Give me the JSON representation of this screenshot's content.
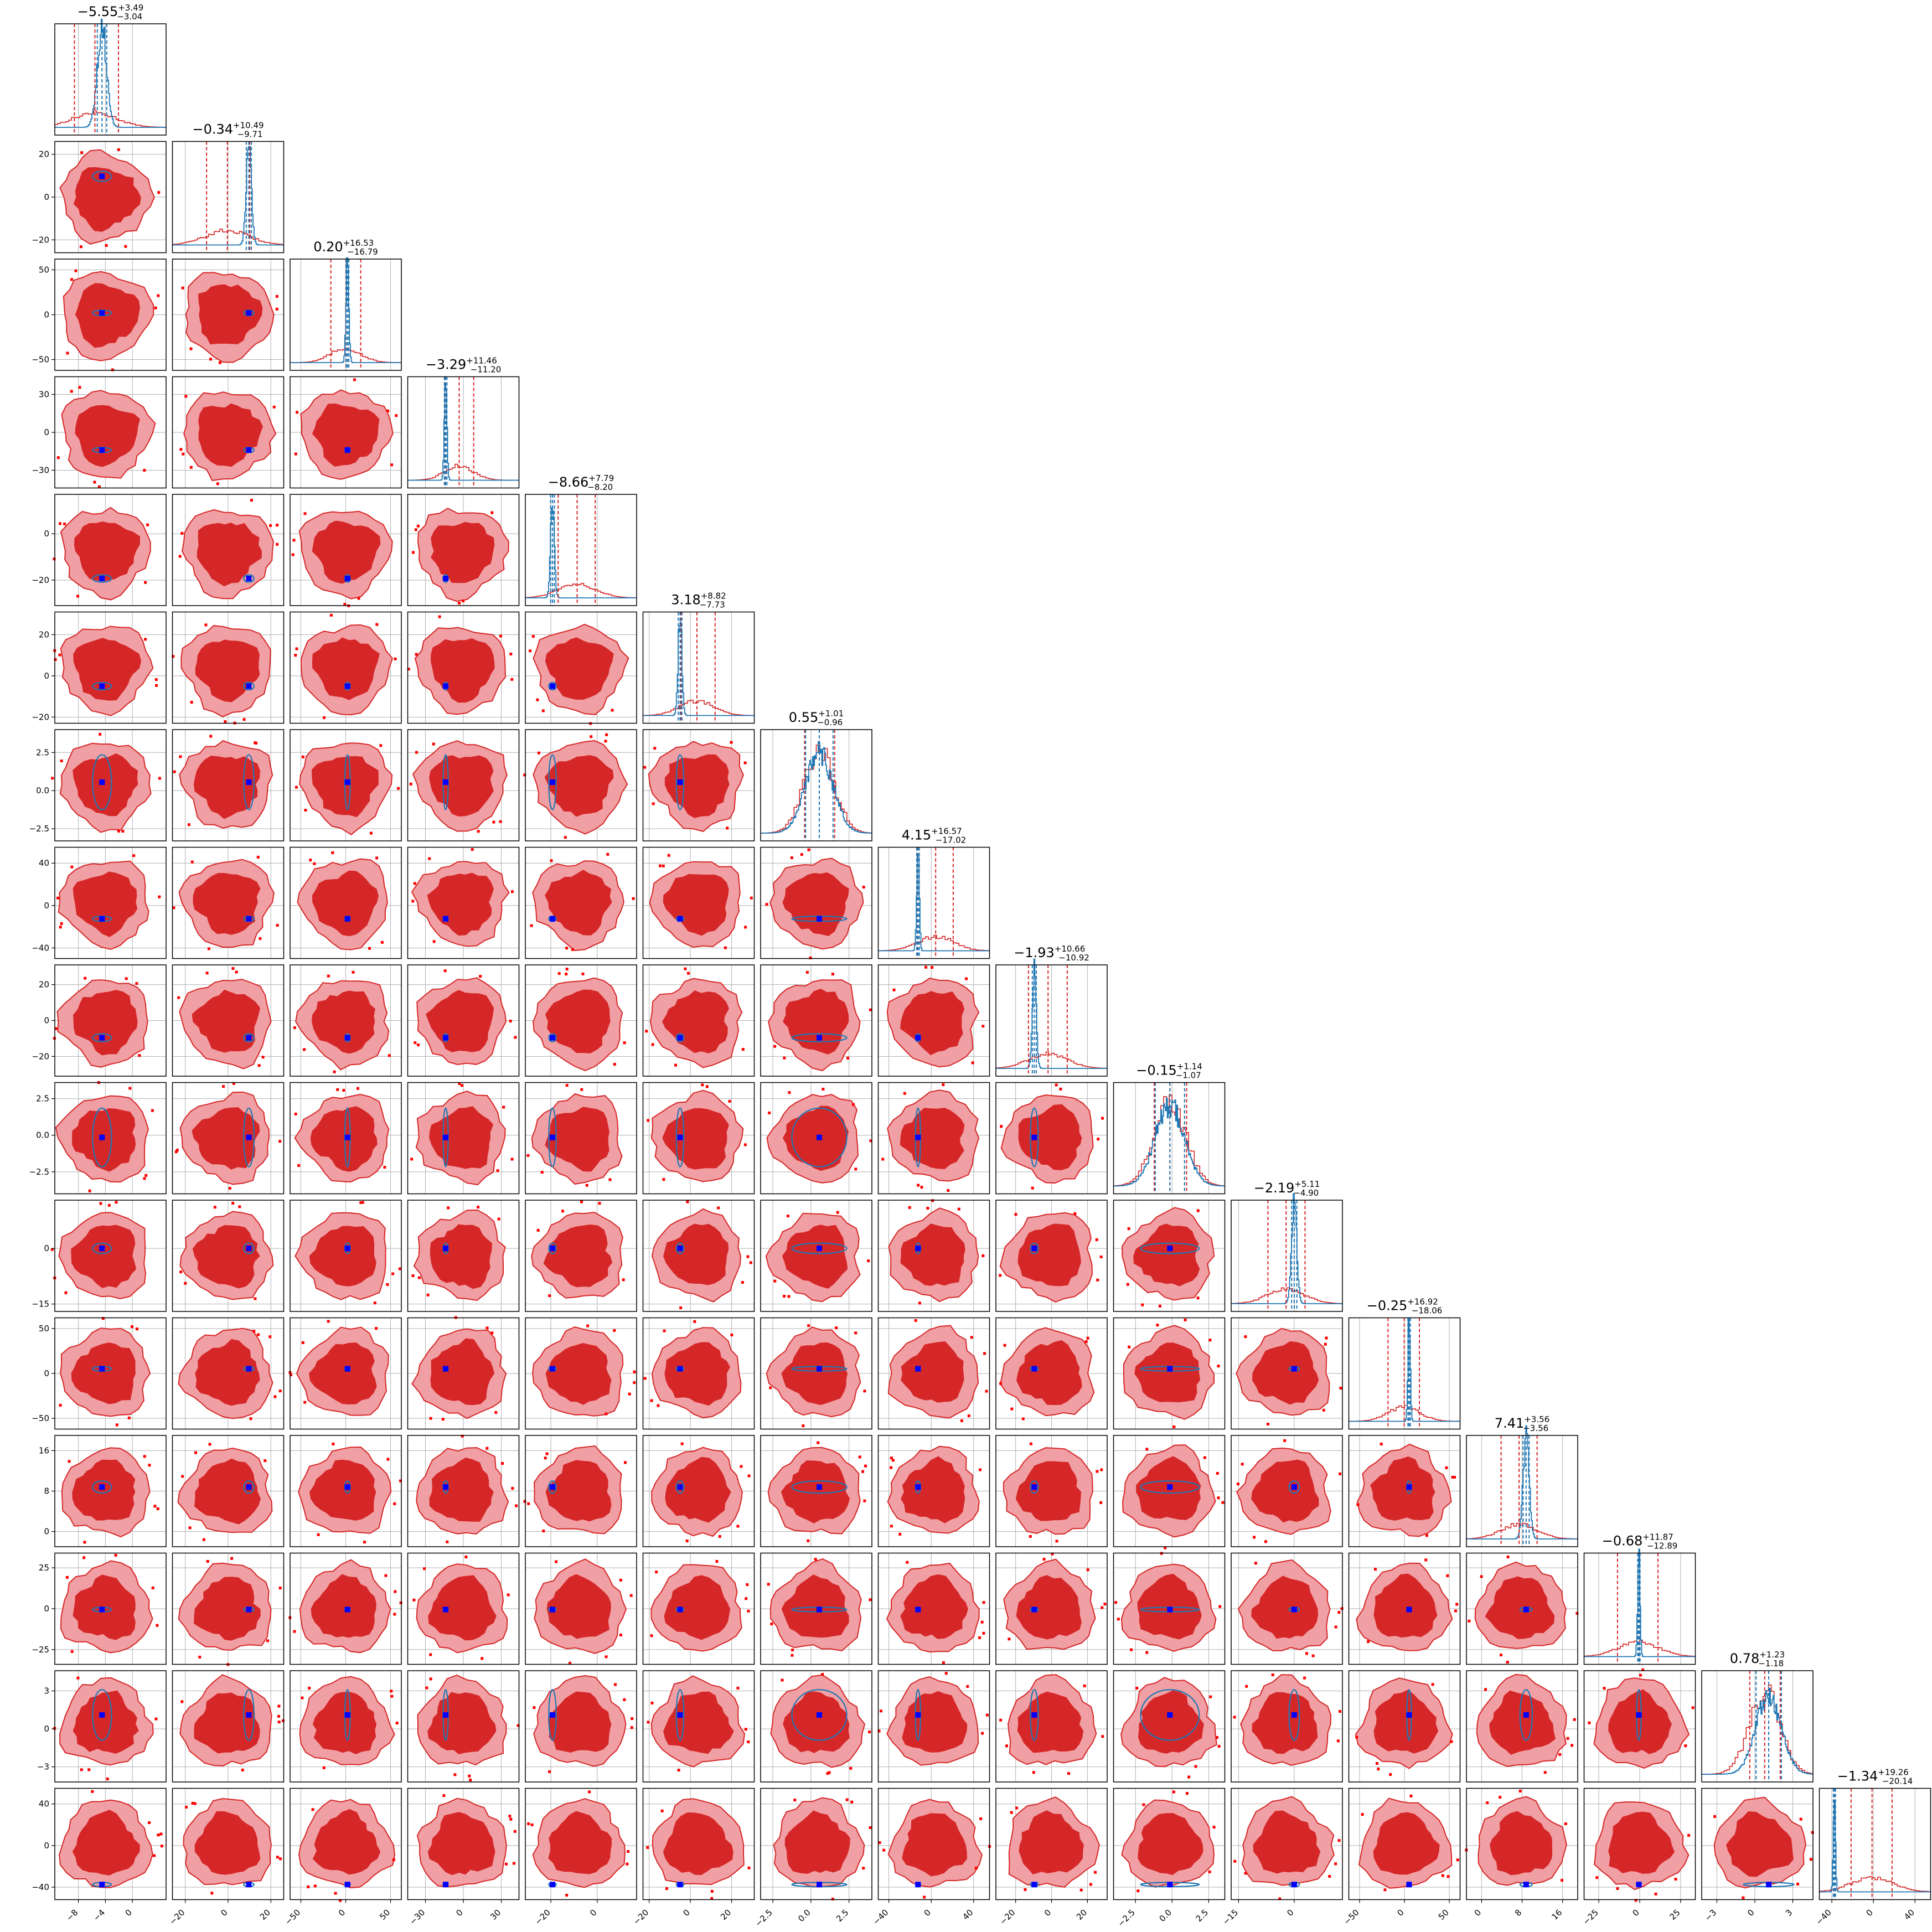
{
  "chart_data": {
    "type": "corner",
    "n_params": 16,
    "grid": true,
    "colors": {
      "wide_posterior": "#d62728",
      "wide_contour_light": "#f0a0a4",
      "narrow_posterior": "#1f77b4",
      "truth_marker": "#0000ff",
      "outlier_point": "#ff0000",
      "grid": "#b0b0b0"
    },
    "parameters": [
      {
        "title_value": "−5.55",
        "err_plus": "+3.49",
        "err_minus": "−3.04",
        "median": -5.55,
        "lo": -8.59,
        "hi": -2.06,
        "range": [
          -11.5,
          5
        ],
        "ticks": [
          -8,
          -4,
          0
        ],
        "tick_labels": [
          "−8",
          "−4",
          "0"
        ],
        "narrow_center": -4.5,
        "narrow_width": 0.7
      },
      {
        "title_value": "−0.34",
        "err_plus": "+10.49",
        "err_minus": "−9.71",
        "median": -0.34,
        "lo": -10.05,
        "hi": 10.15,
        "range": [
          -26,
          26
        ],
        "ticks": [
          -20,
          0,
          20
        ],
        "tick_labels": [
          "−20",
          "0",
          "20"
        ],
        "narrow_center": 9.7,
        "narrow_width": 1.2
      },
      {
        "title_value": "0.20",
        "err_plus": "+16.53",
        "err_minus": "−16.79",
        "median": 0.2,
        "lo": -16.59,
        "hi": 16.73,
        "range": [
          -62,
          62
        ],
        "ticks": [
          -50,
          0,
          50
        ],
        "tick_labels": [
          "−50",
          "0",
          "50"
        ],
        "narrow_center": 2.0,
        "narrow_width": 1.5
      },
      {
        "title_value": "−3.29",
        "err_plus": "+11.46",
        "err_minus": "−11.20",
        "median": -3.29,
        "lo": -14.49,
        "hi": 8.17,
        "range": [
          -44,
          44
        ],
        "ticks": [
          -30,
          0,
          30
        ],
        "tick_labels": [
          "−30",
          "0",
          "30"
        ],
        "narrow_center": -14.0,
        "narrow_width": 1.0
      },
      {
        "title_value": "−8.66",
        "err_plus": "+7.79",
        "err_minus": "−8.20",
        "median": -8.66,
        "lo": -16.86,
        "hi": -0.87,
        "range": [
          -31,
          17
        ],
        "ticks": [
          -20,
          0
        ],
        "tick_labels": [
          "−20",
          "0"
        ],
        "narrow_center": -19.3,
        "narrow_width": 0.8
      },
      {
        "title_value": "3.18",
        "err_plus": "+8.82",
        "err_minus": "−7.73",
        "median": 3.18,
        "lo": -4.55,
        "hi": 12.0,
        "range": [
          -23,
          31
        ],
        "ticks": [
          -20,
          0,
          20
        ],
        "tick_labels": [
          "−20",
          "0",
          "20"
        ],
        "narrow_center": -5.0,
        "narrow_width": 0.9
      },
      {
        "title_value": "0.55",
        "err_plus": "+1.01",
        "err_minus": "−0.96",
        "median": 0.55,
        "lo": -0.41,
        "hi": 1.56,
        "range": [
          -3.3,
          4.0
        ],
        "ticks": [
          -2.5,
          0.0,
          2.5
        ],
        "tick_labels": [
          "−2.5",
          "0.0",
          "2.5"
        ],
        "narrow_center": 0.55,
        "narrow_width": 0.9
      },
      {
        "title_value": "4.15",
        "err_plus": "+16.57",
        "err_minus": "−17.02",
        "median": 4.15,
        "lo": -12.87,
        "hi": 20.72,
        "range": [
          -50,
          55
        ],
        "ticks": [
          -40,
          0,
          40
        ],
        "tick_labels": [
          "−40",
          "0",
          "40"
        ],
        "narrow_center": -12.5,
        "narrow_width": 1.2
      },
      {
        "title_value": "−1.93",
        "err_plus": "+10.66",
        "err_minus": "−10.92",
        "median": -1.93,
        "lo": -12.85,
        "hi": 8.73,
        "range": [
          -31,
          31
        ],
        "ticks": [
          -20,
          0,
          20
        ],
        "tick_labels": [
          "−20",
          "0",
          "20"
        ],
        "narrow_center": -9.6,
        "narrow_width": 1.1
      },
      {
        "title_value": "−0.15",
        "err_plus": "+1.14",
        "err_minus": "−1.07",
        "median": -0.15,
        "lo": -1.22,
        "hi": 0.99,
        "range": [
          -4.0,
          3.6
        ],
        "ticks": [
          -2.5,
          0.0,
          2.5
        ],
        "tick_labels": [
          "−2.5",
          "0.0",
          "2.5"
        ],
        "narrow_center": -0.15,
        "narrow_width": 1.0
      },
      {
        "title_value": "−2.19",
        "err_plus": "+5.11",
        "err_minus": "−4.90",
        "median": -2.19,
        "lo": -7.09,
        "hi": 2.92,
        "range": [
          -17,
          13
        ],
        "ticks": [
          -15,
          0
        ],
        "tick_labels": [
          "−15",
          "0"
        ],
        "narrow_center": 0.0,
        "narrow_width": 0.7
      },
      {
        "title_value": "−0.25",
        "err_plus": "+16.92",
        "err_minus": "−18.06",
        "median": -0.25,
        "lo": -18.31,
        "hi": 16.67,
        "range": [
          -62,
          62
        ],
        "ticks": [
          -50,
          0,
          50
        ],
        "tick_labels": [
          "−50",
          "0",
          "50"
        ],
        "narrow_center": 5.2,
        "narrow_width": 1.3
      },
      {
        "title_value": "7.41",
        "err_plus": "+3.56",
        "err_minus": "−3.56",
        "median": 7.41,
        "lo": 3.85,
        "hi": 10.97,
        "range": [
          -3,
          19
        ],
        "ticks": [
          0,
          8,
          16
        ],
        "tick_labels": [
          "0",
          "8",
          "16"
        ],
        "narrow_center": 8.8,
        "narrow_width": 0.6
      },
      {
        "title_value": "−0.68",
        "err_plus": "+11.87",
        "err_minus": "−12.89",
        "median": -0.68,
        "lo": -13.57,
        "hi": 11.19,
        "range": [
          -34,
          34
        ],
        "ticks": [
          -25,
          0,
          25
        ],
        "tick_labels": [
          "−25",
          "0",
          "25"
        ],
        "narrow_center": -0.5,
        "narrow_width": 0.7
      },
      {
        "title_value": "0.78",
        "err_plus": "+1.23",
        "err_minus": "−1.18",
        "median": 0.78,
        "lo": -0.4,
        "hi": 2.01,
        "range": [
          -4.2,
          4.6
        ],
        "ticks": [
          -3,
          0,
          3
        ],
        "tick_labels": [
          "−3",
          "0",
          "3"
        ],
        "narrow_center": 1.1,
        "narrow_width": 1.0
      },
      {
        "title_value": "−1.34",
        "err_plus": "+19.26",
        "err_minus": "−20.14",
        "median": -1.34,
        "lo": -21.48,
        "hi": 17.92,
        "range": [
          -52,
          55
        ],
        "ticks": [
          -40,
          0,
          40
        ],
        "tick_labels": [
          "−40",
          "0",
          "40"
        ],
        "narrow_center": -37.5,
        "narrow_width": 1.0
      }
    ]
  }
}
